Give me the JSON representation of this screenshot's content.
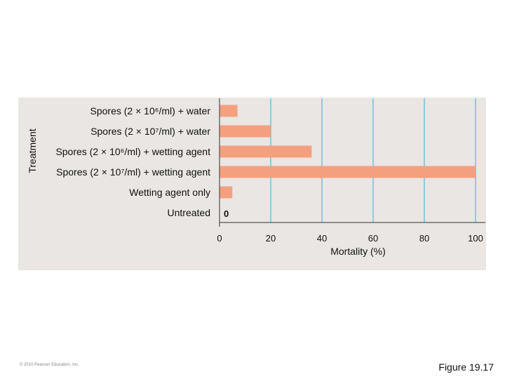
{
  "chart_data": {
    "type": "bar",
    "orientation": "horizontal",
    "categories": [
      "Spores (2 × 10⁶/ml) + water",
      "Spores (2 × 10⁷/ml) + water",
      "Spores (2 × 10⁶/ml) + wetting agent",
      "Spores (2 × 10⁷/ml) + wetting agent",
      "Wetting agent only",
      "Untreated"
    ],
    "values": [
      7,
      20,
      36,
      100,
      5,
      0
    ],
    "data_labels": [
      "",
      "",
      "",
      "",
      "",
      "0"
    ],
    "xlabel": "Mortality (%)",
    "ylabel": "Treatment",
    "xlim": [
      0,
      100
    ],
    "xticks": [
      0,
      20,
      40,
      60,
      80,
      100
    ],
    "grid": "vertical",
    "bar_color": "#f4a07f",
    "grid_color": "#8fcbdc",
    "panel_color": "#e9e6e3"
  },
  "footer": {
    "copyright": "© 2010 Pearson Education, Inc.",
    "figure_label": "Figure 19.17"
  }
}
